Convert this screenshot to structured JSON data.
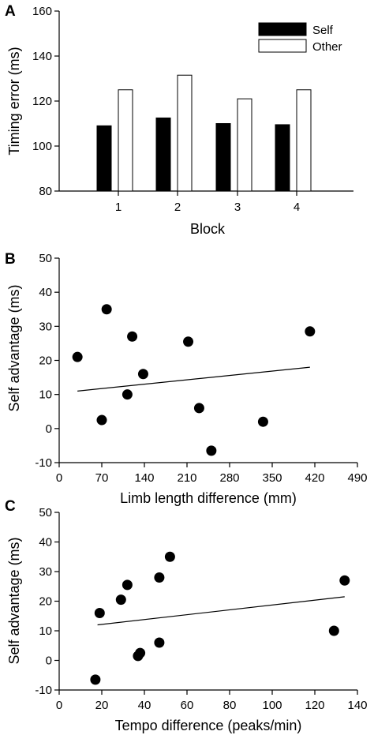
{
  "chart_data": [
    {
      "panel": "A",
      "type": "bar",
      "xlabel": "Block",
      "ylabel": "Timing error (ms)",
      "categories": [
        "1",
        "2",
        "3",
        "4"
      ],
      "ylim": [
        80,
        160
      ],
      "yticks": [
        "80",
        "100",
        "120",
        "140",
        "160"
      ],
      "legend_position": "top-right",
      "series": [
        {
          "name": "Self",
          "color": "#000000",
          "values": [
            109,
            112.5,
            110,
            109.5
          ]
        },
        {
          "name": "Other",
          "color": "#ffffff",
          "values": [
            125,
            131.5,
            121,
            125
          ]
        }
      ]
    },
    {
      "panel": "B",
      "type": "scatter",
      "xlabel": "Limb length difference (mm)",
      "ylabel": "Self advantage (ms)",
      "xlim": [
        0,
        490
      ],
      "ylim": [
        -10,
        50
      ],
      "xticks": [
        "0",
        "70",
        "140",
        "210",
        "280",
        "350",
        "420",
        "490"
      ],
      "yticks": [
        "-10",
        "0",
        "10",
        "20",
        "30",
        "40",
        "50"
      ],
      "points": [
        {
          "x": 30,
          "y": 21
        },
        {
          "x": 70,
          "y": 2.5
        },
        {
          "x": 78,
          "y": 35
        },
        {
          "x": 112,
          "y": 10
        },
        {
          "x": 120,
          "y": 27
        },
        {
          "x": 138,
          "y": 16
        },
        {
          "x": 212,
          "y": 25.5
        },
        {
          "x": 230,
          "y": 6
        },
        {
          "x": 250,
          "y": -6.5
        },
        {
          "x": 335,
          "y": 2
        },
        {
          "x": 412,
          "y": 28.5
        }
      ],
      "fit_line": {
        "x": [
          30,
          412
        ],
        "y": [
          11,
          18
        ]
      }
    },
    {
      "panel": "C",
      "type": "scatter",
      "xlabel": "Tempo difference (peaks/min)",
      "ylabel": "Self advantage (ms)",
      "xlim": [
        0,
        140
      ],
      "ylim": [
        -10,
        50
      ],
      "xticks": [
        "0",
        "20",
        "40",
        "60",
        "80",
        "100",
        "120",
        "140"
      ],
      "yticks": [
        "-10",
        "0",
        "10",
        "20",
        "30",
        "40",
        "50"
      ],
      "points": [
        {
          "x": 17,
          "y": -6.5
        },
        {
          "x": 19,
          "y": 16
        },
        {
          "x": 29,
          "y": 20.5
        },
        {
          "x": 32,
          "y": 25.5
        },
        {
          "x": 37,
          "y": 1.5
        },
        {
          "x": 38,
          "y": 2.5
        },
        {
          "x": 47,
          "y": 28
        },
        {
          "x": 47,
          "y": 6
        },
        {
          "x": 52,
          "y": 35
        },
        {
          "x": 129,
          "y": 10
        },
        {
          "x": 134,
          "y": 27
        }
      ],
      "fit_line": {
        "x": [
          18,
          134
        ],
        "y": [
          12,
          21.5
        ]
      }
    }
  ]
}
